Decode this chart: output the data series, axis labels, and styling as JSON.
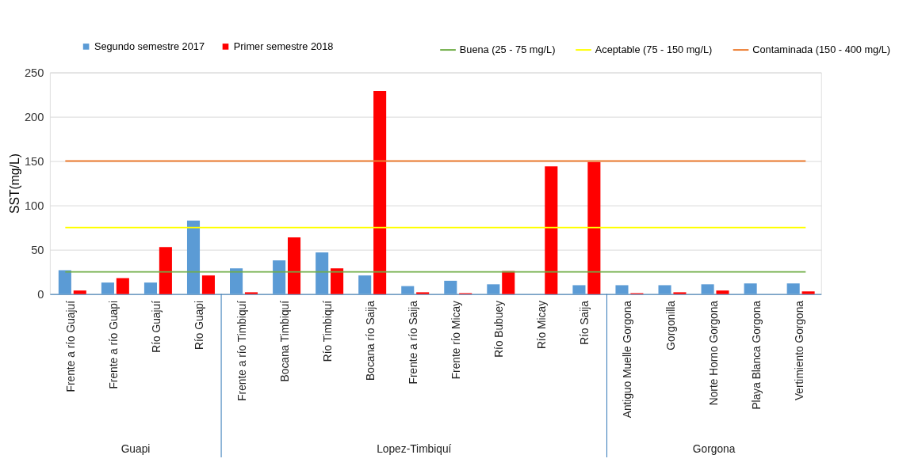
{
  "chart_data": {
    "type": "bar",
    "ylabel": "SST(mg/L)",
    "categories": [
      "Frente a río Guajuí",
      "Frente a río Guapi",
      "Río Guajuí",
      "Río Guapi",
      "Frente a río Timbiquí",
      "Bocana Timbiquí",
      "Río Timbiquí",
      "Bocana río Saija",
      "Frente a río Saija",
      "Frente río Micay",
      "Río Bubuey",
      "Río Micay",
      "Río Saija",
      "Antiguo Muelle Gorgona",
      "Gorgonilla",
      "Norte Horno Gorgona",
      "Playa Blanca Gorgona",
      "Vertimiento Gorgona"
    ],
    "series": [
      {
        "name": "Segundo semestre 2017",
        "color": "#5b9bd5",
        "values": [
          27,
          13,
          13,
          83,
          29,
          38,
          47,
          21,
          9,
          15,
          11,
          null,
          10,
          10,
          10,
          11,
          12,
          12
        ]
      },
      {
        "name": "Primer semestre 2018",
        "color": "#ff0000",
        "values": [
          4,
          18,
          53,
          21,
          2,
          64,
          29,
          229,
          2,
          1,
          26,
          144,
          149,
          1,
          2,
          4,
          null,
          3
        ]
      }
    ],
    "ref_lines": [
      {
        "axis": "y",
        "value": 25,
        "label": "Buena (25 - 75 mg/L)",
        "color": "#70ad47"
      },
      {
        "axis": "y",
        "value": 75,
        "label": "Aceptable (75 - 150 mg/L)",
        "color": "#ffff00"
      },
      {
        "axis": "y",
        "value": 150,
        "label": "Contaminada (150 - 400 mg/L)",
        "color": "#ed7d31"
      }
    ],
    "annotations": [
      "Guapi",
      "Lopez-Timbiquí",
      "Gorgona"
    ],
    "ylim": [
      0,
      250
    ],
    "yticks": [
      0,
      50,
      100,
      150,
      200,
      250
    ],
    "grid": "y",
    "legend": "top"
  }
}
